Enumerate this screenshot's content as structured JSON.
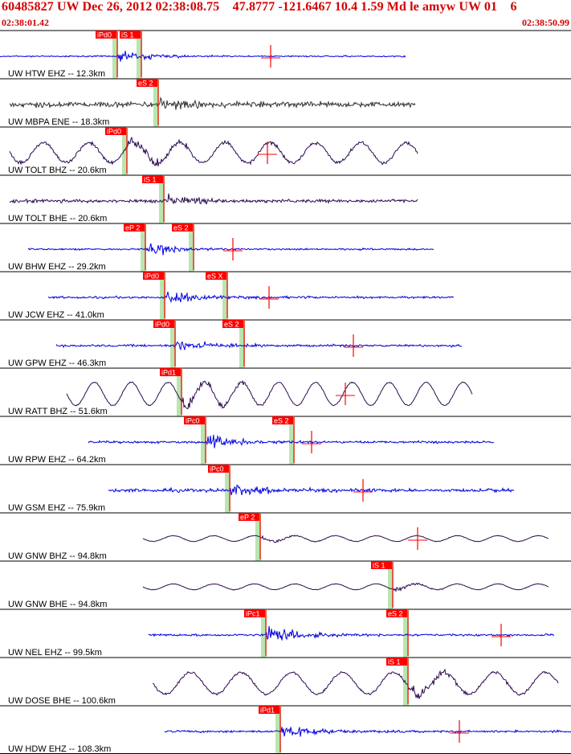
{
  "header": {
    "title": "60485827 UW Dec 26, 2012 02:38:08.75    47.8777 -121.6467 10.4 1.59 Md le amyw UW 01    6",
    "start_time": "02:38:01.42",
    "end_time": "02:38:50.99"
  },
  "colors": {
    "pick_box": "#ff0000",
    "pick_line": "#ff0000",
    "pick_shade": "#b8e6b0",
    "trace_blue": "#0000e0",
    "trace_purple": "#2b0a50",
    "trace_gray": "#333333",
    "separator": "#000000"
  },
  "chart_data": {
    "type": "seismogram",
    "time_window": {
      "start": "02:38:01.42",
      "end": "02:38:50.99"
    },
    "traces": [
      {
        "label": "UW HTW EHZ -- 12.3km",
        "color": "blue",
        "start": 0,
        "end": 505,
        "onset": 145,
        "amp": 12,
        "bg": 1.2,
        "cycles": 0,
        "picks": [
          {
            "label": "iPd0",
            "x": 145
          },
          {
            "label": "iS 1",
            "x": 175
          }
        ],
        "marker": 337
      },
      {
        "label": "UW MBPA ENE -- 18.3km",
        "color": "gray",
        "start": 12,
        "end": 517,
        "onset": 196,
        "amp": 14,
        "bg": 5,
        "cycles": 0,
        "picks": [
          {
            "label": "eS 2",
            "x": 196
          }
        ],
        "marker": null
      },
      {
        "label": "UW TOLT BHZ -- 20.6km",
        "color": "purple",
        "start": 12,
        "end": 520,
        "onset": 157,
        "amp": 14,
        "bg": 3,
        "cycles": 9,
        "picks": [
          {
            "label": "iPd0",
            "x": 157
          }
        ],
        "marker": 333
      },
      {
        "label": "UW TOLT BHE -- 20.6km",
        "color": "purple",
        "start": 12,
        "end": 520,
        "onset": 203,
        "amp": 13,
        "bg": 3,
        "cycles": 0,
        "picks": [
          {
            "label": "iS 1",
            "x": 203
          }
        ],
        "marker": null
      },
      {
        "label": "UW BHW EHZ -- 29.2km",
        "color": "blue",
        "start": 35,
        "end": 540,
        "onset": 180,
        "amp": 13,
        "bg": 1.5,
        "cycles": 0,
        "picks": [
          {
            "label": "eP 2",
            "x": 180
          },
          {
            "label": "eS 2",
            "x": 240
          }
        ],
        "marker": 290
      },
      {
        "label": "UW JCW EHZ -- 41.0km",
        "color": "blue",
        "start": 60,
        "end": 565,
        "onset": 204,
        "amp": 14,
        "bg": 2,
        "cycles": 0,
        "picks": [
          {
            "label": "iPd0",
            "x": 204
          },
          {
            "label": "eS X",
            "x": 282
          }
        ],
        "marker": 335
      },
      {
        "label": "UW GPW EHZ -- 46.3km",
        "color": "blue",
        "start": 70,
        "end": 575,
        "onset": 217,
        "amp": 15,
        "bg": 2,
        "cycles": 0,
        "picks": [
          {
            "label": "iPd0",
            "x": 217
          },
          {
            "label": "eS 2",
            "x": 303
          }
        ],
        "marker": 440
      },
      {
        "label": "UW RATT BHZ -- 51.6km",
        "color": "purple",
        "start": 83,
        "end": 588,
        "onset": 225,
        "amp": 16,
        "bg": 1,
        "cycles": 11,
        "picks": [
          {
            "label": "iPd1",
            "x": 225
          }
        ],
        "marker": 430
      },
      {
        "label": "UW RPW EHZ -- 64.2km",
        "color": "blue",
        "start": 110,
        "end": 615,
        "onset": 255,
        "amp": 15,
        "bg": 2,
        "cycles": 0,
        "picks": [
          {
            "label": "iPc0",
            "x": 255
          },
          {
            "label": "eS 2",
            "x": 365
          }
        ],
        "marker": 388
      },
      {
        "label": "UW GSM EHZ -- 75.9km",
        "color": "blue",
        "start": 135,
        "end": 640,
        "onset": 285,
        "amp": 14,
        "bg": 3,
        "cycles": 0,
        "picks": [
          {
            "label": "iPc0",
            "x": 285
          }
        ],
        "marker": 452
      },
      {
        "label": "UW GNW BHZ -- 94.8km",
        "color": "purple",
        "start": 178,
        "end": 683,
        "onset": 323,
        "amp": 4,
        "bg": 0.5,
        "cycles": 10,
        "picks": [
          {
            "label": "eP 2",
            "x": 323
          }
        ],
        "marker": 520
      },
      {
        "label": "UW GNW BHE -- 94.8km",
        "color": "purple",
        "start": 178,
        "end": 683,
        "onset": 488,
        "amp": 4,
        "bg": 0.5,
        "cycles": 10,
        "picks": [
          {
            "label": "iS 1",
            "x": 488
          }
        ],
        "marker": null
      },
      {
        "label": "UW NEL EHZ -- 99.5km",
        "color": "blue",
        "start": 185,
        "end": 690,
        "onset": 330,
        "amp": 15,
        "bg": 2,
        "cycles": 0,
        "picks": [
          {
            "label": "iPc1",
            "x": 330
          },
          {
            "label": "eS 2",
            "x": 507
          }
        ],
        "marker": 624
      },
      {
        "label": "UW DOSE BHE -- 100.6km",
        "color": "purple",
        "start": 190,
        "end": 695,
        "onset": 507,
        "amp": 15,
        "bg": 2,
        "cycles": 8,
        "picks": [
          {
            "label": "iS 1",
            "x": 507
          }
        ],
        "marker": null
      },
      {
        "label": "UW HDW EHZ -- 108.3km",
        "color": "blue",
        "start": 205,
        "end": 711,
        "onset": 348,
        "amp": 14,
        "bg": 2,
        "cycles": 0,
        "picks": [
          {
            "label": "iPd1",
            "x": 348
          }
        ],
        "marker": 572
      }
    ]
  }
}
